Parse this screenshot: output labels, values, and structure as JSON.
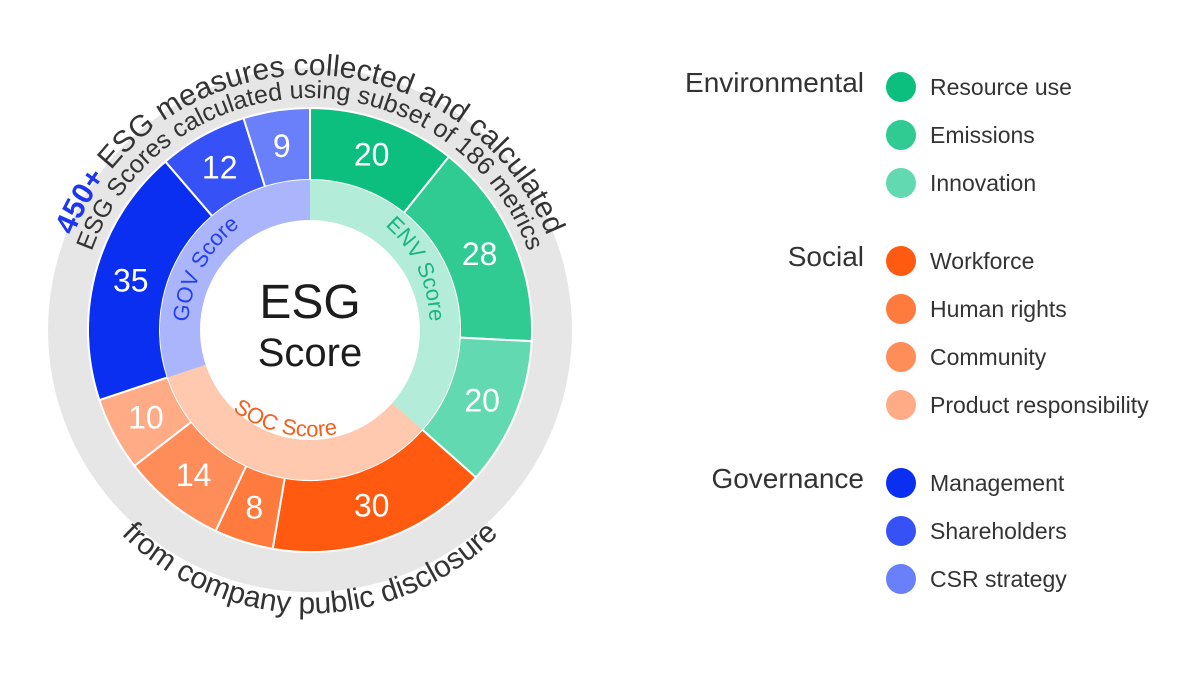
{
  "center": {
    "line1": "ESG",
    "line2": "Score"
  },
  "arcs": {
    "top_prefix": "450+",
    "top_text": " ESG measures collected and calculated",
    "middle_text": "ESG Scores calculated using subset of 186 metrics",
    "bottom_text": "from company public disclosure"
  },
  "pillars": {
    "env": "ENV Score",
    "soc": "SOC Score",
    "gov": "GOV Score"
  },
  "chart_data": {
    "type": "sunburst",
    "center_label": "ESG Score",
    "segments": [
      {
        "category": "Resource use",
        "pillar": "Environmental",
        "value": 20,
        "color": "#0cbf7f"
      },
      {
        "category": "Emissions",
        "pillar": "Environmental",
        "value": 28,
        "color": "#2fcb93"
      },
      {
        "category": "Innovation",
        "pillar": "Environmental",
        "value": 20,
        "color": "#63d9b1"
      },
      {
        "category": "Workforce",
        "pillar": "Social",
        "value": 30,
        "color": "#ff5a0f"
      },
      {
        "category": "Human rights",
        "pillar": "Social",
        "value": 8,
        "color": "#ff7a3d"
      },
      {
        "category": "Community",
        "pillar": "Social",
        "value": 14,
        "color": "#ff8d5a"
      },
      {
        "category": "Product responsibility",
        "pillar": "Social",
        "value": 10,
        "color": "#ffab85"
      },
      {
        "category": "Management",
        "pillar": "Governance",
        "value": 35,
        "color": "#0b2ff0"
      },
      {
        "category": "Shareholders",
        "pillar": "Governance",
        "value": 12,
        "color": "#3651f6"
      },
      {
        "category": "CSR strategy",
        "pillar": "Governance",
        "value": 9,
        "color": "#6a7ffa"
      }
    ],
    "pillar_colors": {
      "Environmental": {
        "inner": "#b3ecd8",
        "text": "#1ab583"
      },
      "Social": {
        "inner": "#ffc9b0",
        "text": "#f2601e"
      },
      "Governance": {
        "inner": "#aab5fb",
        "text": "#2440ef"
      }
    }
  },
  "legend": [
    {
      "title": "Environmental",
      "items": [
        {
          "label": "Resource use",
          "color": "#0cbf7f"
        },
        {
          "label": "Emissions",
          "color": "#2fcb93"
        },
        {
          "label": "Innovation",
          "color": "#63d9b1"
        }
      ]
    },
    {
      "title": "Social",
      "items": [
        {
          "label": "Workforce",
          "color": "#ff5a0f"
        },
        {
          "label": "Human rights",
          "color": "#ff7a3d"
        },
        {
          "label": "Community",
          "color": "#ff8d5a"
        },
        {
          "label": "Product responsibility",
          "color": "#ffab85"
        }
      ]
    },
    {
      "title": "Governance",
      "items": [
        {
          "label": "Management",
          "color": "#0b2ff0"
        },
        {
          "label": "Shareholders",
          "color": "#3651f6"
        },
        {
          "label": "CSR strategy",
          "color": "#6a7ffa"
        }
      ]
    }
  ]
}
